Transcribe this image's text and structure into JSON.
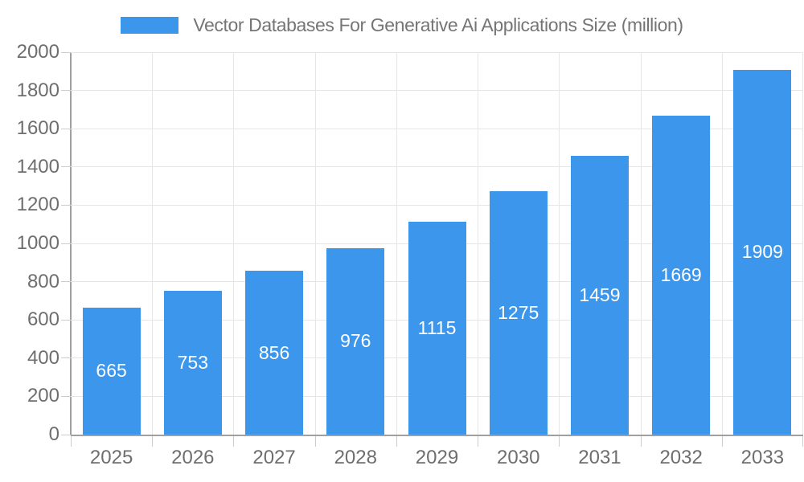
{
  "legend": {
    "label": "Vector Databases For Generative Ai Applications Size (million)"
  },
  "chart_data": {
    "type": "bar",
    "title": "Vector Databases For Generative Ai Applications Size (million)",
    "categories": [
      "2025",
      "2026",
      "2027",
      "2028",
      "2029",
      "2030",
      "2031",
      "2032",
      "2033"
    ],
    "values": [
      665,
      753,
      856,
      976,
      1115,
      1275,
      1459,
      1669,
      1909
    ],
    "xlabel": "",
    "ylabel": "",
    "ylim": [
      0,
      2000
    ],
    "ytick_step": 200,
    "yticks": [
      0,
      200,
      400,
      600,
      800,
      1000,
      1200,
      1400,
      1600,
      1800,
      2000
    ],
    "grid": true,
    "legend_position": "top",
    "value_labels_position": "inside-center",
    "colors": {
      "bar": "#3C96EC",
      "value_label": "#FFFFFF",
      "axis_line": "#A0A0A0",
      "tick": "#CDCDCD",
      "gridline": "#E6E6E6",
      "axis_text": "#6E6E6E",
      "title_text": "#757575"
    }
  }
}
